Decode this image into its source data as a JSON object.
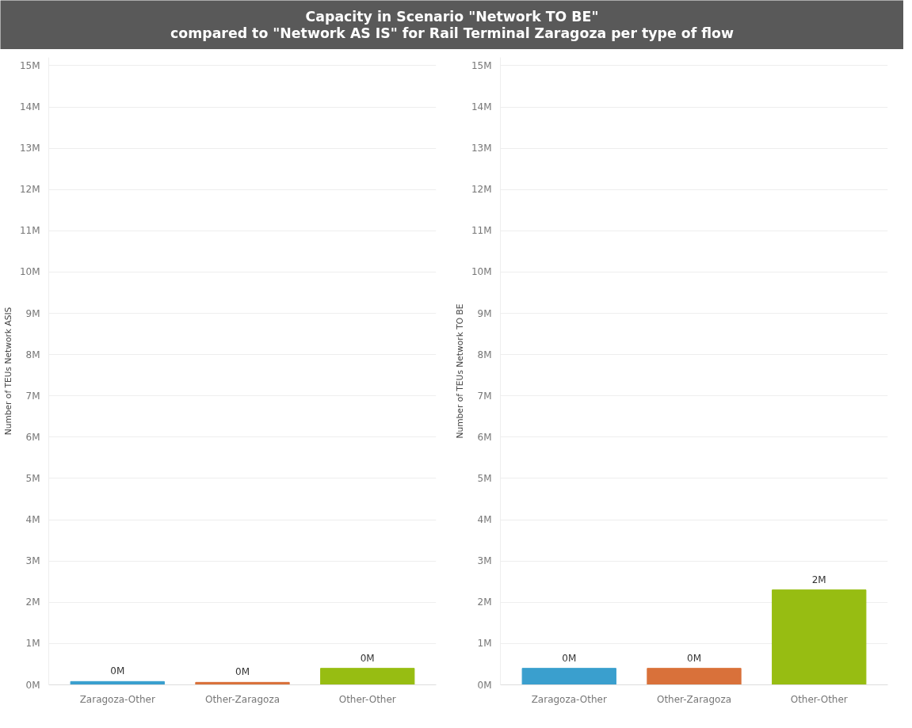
{
  "chart_data": [
    {
      "type": "bar",
      "title": "Capacity in Scenario \"Network TO BE\"\ncompared to \"Network AS IS\" for Rail Terminal Zaragoza per type of flow",
      "ylabel": "Number of TEUs Network ASIS",
      "categories": [
        "Zaragoza-Other",
        "Other-Zaragoza",
        "Other-Other"
      ],
      "values": [
        0.08,
        0.06,
        0.4
      ],
      "colors": [
        "#3a9fce",
        "#d9713a",
        "#97bd12"
      ],
      "value_labels": [
        "0M",
        "0M",
        "0M"
      ],
      "ylim": [
        0,
        15.2
      ],
      "yticks": [
        {
          "value": 0,
          "label": "0M"
        },
        {
          "value": 1,
          "label": "1M"
        },
        {
          "value": 2,
          "label": "2M"
        },
        {
          "value": 3,
          "label": "3M"
        },
        {
          "value": 4,
          "label": "4M"
        },
        {
          "value": 5,
          "label": "5M"
        },
        {
          "value": 6,
          "label": "6M"
        },
        {
          "value": 7,
          "label": "7M"
        },
        {
          "value": 8,
          "label": "8M"
        },
        {
          "value": 9,
          "label": "9M"
        },
        {
          "value": 10,
          "label": "10M"
        },
        {
          "value": 11,
          "label": "11M"
        },
        {
          "value": 12,
          "label": "12M"
        },
        {
          "value": 13,
          "label": "13M"
        },
        {
          "value": 14,
          "label": "14M"
        },
        {
          "value": 15,
          "label": "15M"
        }
      ],
      "grid": "y"
    },
    {
      "type": "bar",
      "ylabel": "Number of TEUs Network TO BE",
      "categories": [
        "Zaragoza-Other",
        "Other-Zaragoza",
        "Other-Other"
      ],
      "values": [
        0.4,
        0.4,
        2.3
      ],
      "colors": [
        "#3a9fce",
        "#d9713a",
        "#97bd12"
      ],
      "value_labels": [
        "0M",
        "0M",
        "2M"
      ],
      "ylim": [
        0,
        15.2
      ],
      "yticks": [
        {
          "value": 0,
          "label": "0M"
        },
        {
          "value": 1,
          "label": "1M"
        },
        {
          "value": 2,
          "label": "2M"
        },
        {
          "value": 3,
          "label": "3M"
        },
        {
          "value": 4,
          "label": "4M"
        },
        {
          "value": 5,
          "label": "5M"
        },
        {
          "value": 6,
          "label": "6M"
        },
        {
          "value": 7,
          "label": "7M"
        },
        {
          "value": 8,
          "label": "8M"
        },
        {
          "value": 9,
          "label": "9M"
        },
        {
          "value": 10,
          "label": "10M"
        },
        {
          "value": 11,
          "label": "11M"
        },
        {
          "value": 12,
          "label": "12M"
        },
        {
          "value": 13,
          "label": "13M"
        },
        {
          "value": 14,
          "label": "14M"
        },
        {
          "value": 15,
          "label": "15M"
        }
      ],
      "grid": "y"
    }
  ]
}
